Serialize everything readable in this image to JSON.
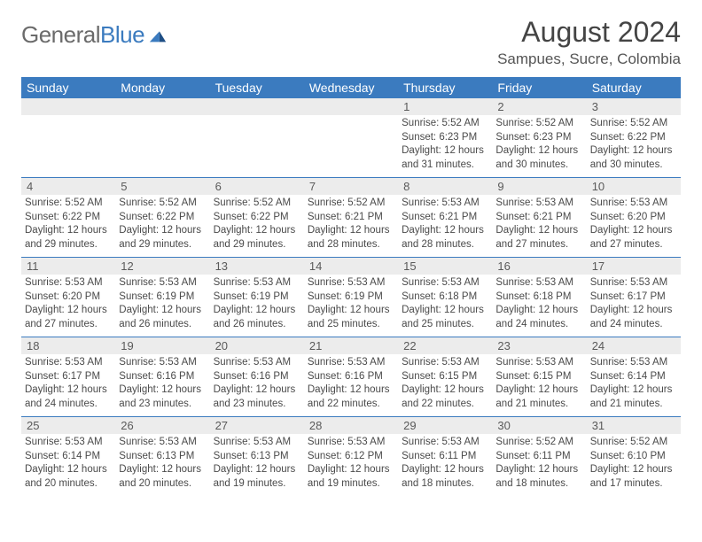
{
  "logo": {
    "word1": "General",
    "word2": "Blue"
  },
  "title": "August 2024",
  "location": "Sampues, Sucre, Colombia",
  "colors": {
    "header_bg": "#3b7bbf",
    "header_text": "#ffffff",
    "daynum_bg": "#ececec",
    "text": "#4a4a4a",
    "rule": "#3b7bbf"
  },
  "day_headers": [
    "Sunday",
    "Monday",
    "Tuesday",
    "Wednesday",
    "Thursday",
    "Friday",
    "Saturday"
  ],
  "weeks": [
    {
      "days": [
        {
          "n": "",
          "sunrise": "",
          "sunset": "",
          "daylight": ""
        },
        {
          "n": "",
          "sunrise": "",
          "sunset": "",
          "daylight": ""
        },
        {
          "n": "",
          "sunrise": "",
          "sunset": "",
          "daylight": ""
        },
        {
          "n": "",
          "sunrise": "",
          "sunset": "",
          "daylight": ""
        },
        {
          "n": "1",
          "sunrise": "Sunrise: 5:52 AM",
          "sunset": "Sunset: 6:23 PM",
          "daylight": "Daylight: 12 hours and 31 minutes."
        },
        {
          "n": "2",
          "sunrise": "Sunrise: 5:52 AM",
          "sunset": "Sunset: 6:23 PM",
          "daylight": "Daylight: 12 hours and 30 minutes."
        },
        {
          "n": "3",
          "sunrise": "Sunrise: 5:52 AM",
          "sunset": "Sunset: 6:22 PM",
          "daylight": "Daylight: 12 hours and 30 minutes."
        }
      ]
    },
    {
      "days": [
        {
          "n": "4",
          "sunrise": "Sunrise: 5:52 AM",
          "sunset": "Sunset: 6:22 PM",
          "daylight": "Daylight: 12 hours and 29 minutes."
        },
        {
          "n": "5",
          "sunrise": "Sunrise: 5:52 AM",
          "sunset": "Sunset: 6:22 PM",
          "daylight": "Daylight: 12 hours and 29 minutes."
        },
        {
          "n": "6",
          "sunrise": "Sunrise: 5:52 AM",
          "sunset": "Sunset: 6:22 PM",
          "daylight": "Daylight: 12 hours and 29 minutes."
        },
        {
          "n": "7",
          "sunrise": "Sunrise: 5:52 AM",
          "sunset": "Sunset: 6:21 PM",
          "daylight": "Daylight: 12 hours and 28 minutes."
        },
        {
          "n": "8",
          "sunrise": "Sunrise: 5:53 AM",
          "sunset": "Sunset: 6:21 PM",
          "daylight": "Daylight: 12 hours and 28 minutes."
        },
        {
          "n": "9",
          "sunrise": "Sunrise: 5:53 AM",
          "sunset": "Sunset: 6:21 PM",
          "daylight": "Daylight: 12 hours and 27 minutes."
        },
        {
          "n": "10",
          "sunrise": "Sunrise: 5:53 AM",
          "sunset": "Sunset: 6:20 PM",
          "daylight": "Daylight: 12 hours and 27 minutes."
        }
      ]
    },
    {
      "days": [
        {
          "n": "11",
          "sunrise": "Sunrise: 5:53 AM",
          "sunset": "Sunset: 6:20 PM",
          "daylight": "Daylight: 12 hours and 27 minutes."
        },
        {
          "n": "12",
          "sunrise": "Sunrise: 5:53 AM",
          "sunset": "Sunset: 6:19 PM",
          "daylight": "Daylight: 12 hours and 26 minutes."
        },
        {
          "n": "13",
          "sunrise": "Sunrise: 5:53 AM",
          "sunset": "Sunset: 6:19 PM",
          "daylight": "Daylight: 12 hours and 26 minutes."
        },
        {
          "n": "14",
          "sunrise": "Sunrise: 5:53 AM",
          "sunset": "Sunset: 6:19 PM",
          "daylight": "Daylight: 12 hours and 25 minutes."
        },
        {
          "n": "15",
          "sunrise": "Sunrise: 5:53 AM",
          "sunset": "Sunset: 6:18 PM",
          "daylight": "Daylight: 12 hours and 25 minutes."
        },
        {
          "n": "16",
          "sunrise": "Sunrise: 5:53 AM",
          "sunset": "Sunset: 6:18 PM",
          "daylight": "Daylight: 12 hours and 24 minutes."
        },
        {
          "n": "17",
          "sunrise": "Sunrise: 5:53 AM",
          "sunset": "Sunset: 6:17 PM",
          "daylight": "Daylight: 12 hours and 24 minutes."
        }
      ]
    },
    {
      "days": [
        {
          "n": "18",
          "sunrise": "Sunrise: 5:53 AM",
          "sunset": "Sunset: 6:17 PM",
          "daylight": "Daylight: 12 hours and 24 minutes."
        },
        {
          "n": "19",
          "sunrise": "Sunrise: 5:53 AM",
          "sunset": "Sunset: 6:16 PM",
          "daylight": "Daylight: 12 hours and 23 minutes."
        },
        {
          "n": "20",
          "sunrise": "Sunrise: 5:53 AM",
          "sunset": "Sunset: 6:16 PM",
          "daylight": "Daylight: 12 hours and 23 minutes."
        },
        {
          "n": "21",
          "sunrise": "Sunrise: 5:53 AM",
          "sunset": "Sunset: 6:16 PM",
          "daylight": "Daylight: 12 hours and 22 minutes."
        },
        {
          "n": "22",
          "sunrise": "Sunrise: 5:53 AM",
          "sunset": "Sunset: 6:15 PM",
          "daylight": "Daylight: 12 hours and 22 minutes."
        },
        {
          "n": "23",
          "sunrise": "Sunrise: 5:53 AM",
          "sunset": "Sunset: 6:15 PM",
          "daylight": "Daylight: 12 hours and 21 minutes."
        },
        {
          "n": "24",
          "sunrise": "Sunrise: 5:53 AM",
          "sunset": "Sunset: 6:14 PM",
          "daylight": "Daylight: 12 hours and 21 minutes."
        }
      ]
    },
    {
      "days": [
        {
          "n": "25",
          "sunrise": "Sunrise: 5:53 AM",
          "sunset": "Sunset: 6:14 PM",
          "daylight": "Daylight: 12 hours and 20 minutes."
        },
        {
          "n": "26",
          "sunrise": "Sunrise: 5:53 AM",
          "sunset": "Sunset: 6:13 PM",
          "daylight": "Daylight: 12 hours and 20 minutes."
        },
        {
          "n": "27",
          "sunrise": "Sunrise: 5:53 AM",
          "sunset": "Sunset: 6:13 PM",
          "daylight": "Daylight: 12 hours and 19 minutes."
        },
        {
          "n": "28",
          "sunrise": "Sunrise: 5:53 AM",
          "sunset": "Sunset: 6:12 PM",
          "daylight": "Daylight: 12 hours and 19 minutes."
        },
        {
          "n": "29",
          "sunrise": "Sunrise: 5:53 AM",
          "sunset": "Sunset: 6:11 PM",
          "daylight": "Daylight: 12 hours and 18 minutes."
        },
        {
          "n": "30",
          "sunrise": "Sunrise: 5:52 AM",
          "sunset": "Sunset: 6:11 PM",
          "daylight": "Daylight: 12 hours and 18 minutes."
        },
        {
          "n": "31",
          "sunrise": "Sunrise: 5:52 AM",
          "sunset": "Sunset: 6:10 PM",
          "daylight": "Daylight: 12 hours and 17 minutes."
        }
      ]
    }
  ]
}
